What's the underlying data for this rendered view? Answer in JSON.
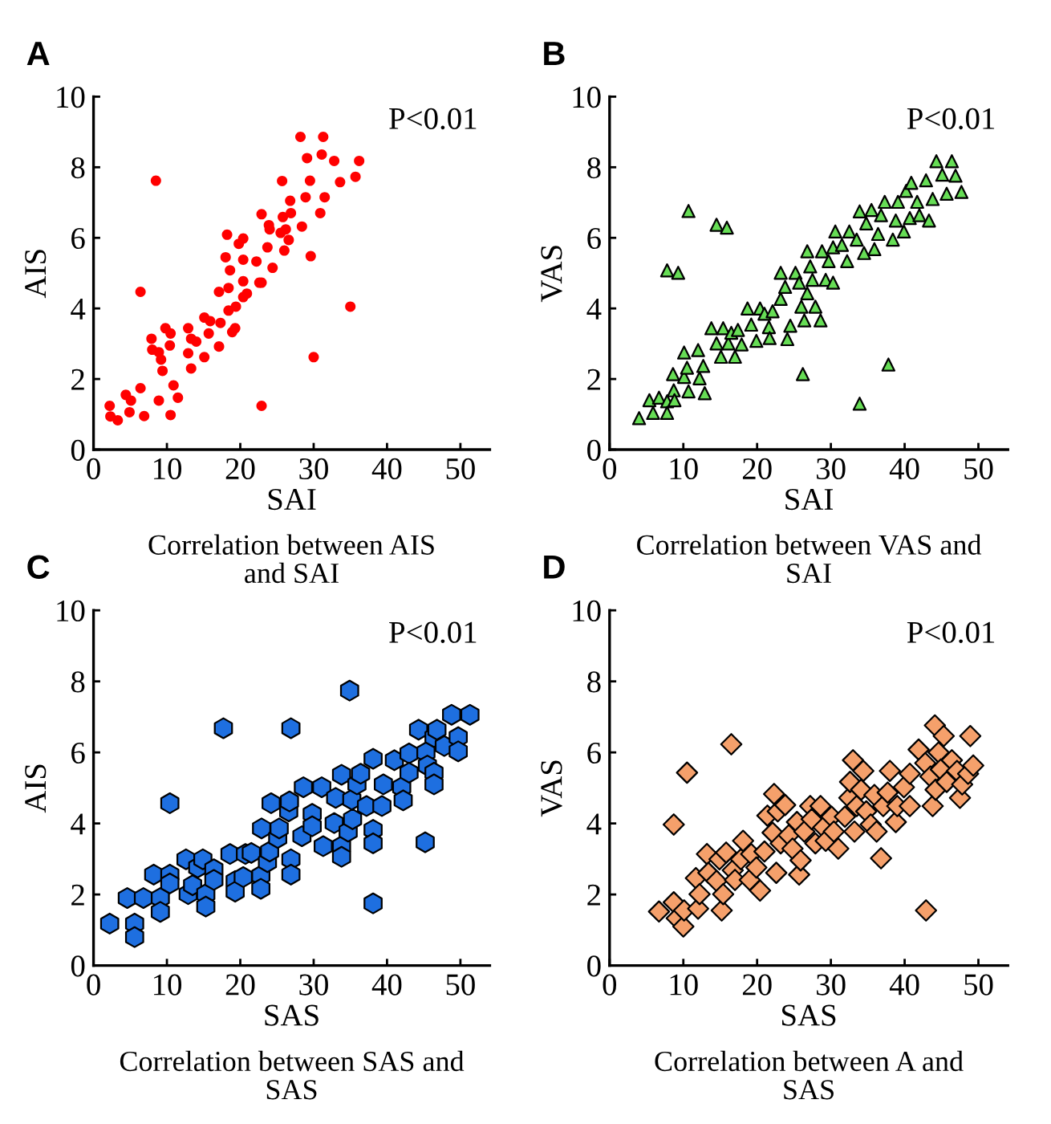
{
  "chart_data": [
    {
      "type": "scatter",
      "title": "A",
      "xlabel": "SAI",
      "ylabel": "AIS",
      "marker": "circle",
      "xlim": [
        0,
        54
      ],
      "xticks": [
        0,
        10,
        20,
        30,
        40,
        50
      ],
      "ylim": [
        0,
        10
      ],
      "yticks": [
        0,
        2,
        4,
        6,
        8,
        10
      ],
      "annotations": [
        "P<0.01",
        "Correlation between AIS\nand SAI"
      ],
      "series": [
        {
          "color": "#ff0000",
          "x": [
            2.2,
            2.3,
            3.3,
            4.4,
            4.9,
            5.1,
            6.4,
            6.4,
            6.9,
            8.5,
            7.9,
            8.0,
            8.9,
            8.9,
            9.2,
            9.4,
            9.8,
            10.4,
            10.5,
            10.5,
            10.9,
            11.5,
            12.9,
            12.9,
            13.3,
            13.3,
            14.0,
            15.1,
            15.1,
            15.7,
            15.9,
            17.1,
            17.3,
            17.1,
            18.0,
            18.2,
            18.4,
            18.6,
            18.4,
            18.9,
            19.3,
            19.4,
            19.8,
            20.4,
            20.4,
            20.4,
            20.4,
            20.9,
            22.2,
            22.6,
            22.9,
            22.9,
            22.9,
            23.7,
            23.9,
            24.0,
            24.4,
            25.5,
            25.7,
            25.8,
            26.0,
            26.2,
            26.6,
            26.8,
            26.9,
            28.2,
            28.4,
            28.9,
            29.1,
            29.5,
            29.6,
            30.0,
            31.3,
            31.1,
            30.9,
            31.5,
            32.8,
            33.6,
            35.0,
            35.7,
            36.2
          ],
          "values": [
            1.24,
            0.94,
            0.83,
            1.55,
            1.06,
            1.39,
            1.74,
            4.47,
            0.95,
            7.62,
            3.14,
            2.83,
            2.76,
            1.39,
            2.55,
            2.23,
            3.44,
            2.95,
            3.29,
            0.98,
            1.82,
            1.47,
            3.44,
            2.73,
            3.14,
            2.3,
            3.06,
            3.74,
            2.62,
            3.29,
            3.64,
            4.47,
            3.59,
            2.92,
            5.45,
            6.09,
            4.58,
            5.08,
            3.94,
            3.33,
            3.44,
            4.05,
            5.83,
            5.98,
            5.38,
            4.77,
            4.32,
            4.42,
            5.33,
            4.73,
            6.67,
            1.24,
            4.73,
            5.73,
            6.36,
            6.24,
            5.15,
            6.14,
            7.61,
            6.59,
            5.64,
            6.24,
            5.94,
            7.05,
            6.7,
            8.86,
            6.32,
            7.15,
            8.26,
            7.62,
            5.48,
            2.62,
            8.86,
            8.36,
            6.7,
            7.15,
            8.18,
            7.58,
            4.05,
            7.73,
            8.18
          ]
        }
      ]
    },
    {
      "type": "scatter",
      "title": "B",
      "xlabel": "SAI",
      "ylabel": "VAS",
      "marker": "triangle",
      "xlim": [
        0,
        54
      ],
      "xticks": [
        0,
        10,
        20,
        30,
        40,
        50
      ],
      "ylim": [
        0,
        10
      ],
      "yticks": [
        0,
        2,
        4,
        6,
        8,
        10
      ],
      "annotations": [
        "P<0.01",
        "Correlation between VAS and\nSAI"
      ],
      "series": [
        {
          "color": "#66dd55",
          "x": [
            4.0,
            5.4,
            5.9,
            6.7,
            7.8,
            7.8,
            7.8,
            8.6,
            8.7,
            8.8,
            9.3,
            10.1,
            10.1,
            10.5,
            10.7,
            10.7,
            12.0,
            12.2,
            12.7,
            12.9,
            13.8,
            14.5,
            14.5,
            15.1,
            15.4,
            15.9,
            16.1,
            16.5,
            17.0,
            17.4,
            17.9,
            18.7,
            19.2,
            19.9,
            20.4,
            21.0,
            21.6,
            21.7,
            22.1,
            23.2,
            23.2,
            23.8,
            24.1,
            24.5,
            25.2,
            25.7,
            26.0,
            26.2,
            26.4,
            26.8,
            26.8,
            27.2,
            27.5,
            27.9,
            28.6,
            28.8,
            29.3,
            29.7,
            30.3,
            30.3,
            30.6,
            31.5,
            32.2,
            32.5,
            33.5,
            33.9,
            33.9,
            34.5,
            34.8,
            35.5,
            35.9,
            36.4,
            36.8,
            37.3,
            37.8,
            38.4,
            38.8,
            39.1,
            39.9,
            40.2,
            40.7,
            40.9,
            41.7,
            42.0,
            42.9,
            43.3,
            43.8,
            44.3,
            45.1,
            45.7,
            46.4,
            46.9,
            47.7
          ],
          "values": [
            0.89,
            1.4,
            1.04,
            1.47,
            1.37,
            1.04,
            5.08,
            2.14,
            1.68,
            1.4,
            5.01,
            2.75,
            2.06,
            2.32,
            6.76,
            1.65,
            2.82,
            2.02,
            2.37,
            1.6,
            3.44,
            3.01,
            6.37,
            2.63,
            3.44,
            6.29,
            3.01,
            3.31,
            2.63,
            3.39,
            2.98,
            4.0,
            3.54,
            3.08,
            4.0,
            3.85,
            3.47,
            3.16,
            3.92,
            5.01,
            4.27,
            4.61,
            3.13,
            3.51,
            5.01,
            4.73,
            4.05,
            2.14,
            3.66,
            5.62,
            4.43,
            5.19,
            4.81,
            4.05,
            3.66,
            5.62,
            4.81,
            5.34,
            5.73,
            4.73,
            6.18,
            5.8,
            5.34,
            6.18,
            5.95,
            6.75,
            1.3,
            5.57,
            6.41,
            6.79,
            5.68,
            6.11,
            6.64,
            7.02,
            2.41,
            5.95,
            6.49,
            7.02,
            6.18,
            7.33,
            6.56,
            7.56,
            7.02,
            6.64,
            7.63,
            6.49,
            7.1,
            8.17,
            7.79,
            7.25,
            8.17,
            7.76,
            7.3
          ]
        }
      ]
    },
    {
      "type": "scatter",
      "title": "C",
      "xlabel": "SAS",
      "ylabel": "AIS",
      "xlim": [
        0,
        54
      ],
      "xticks": [
        0,
        10,
        20,
        30,
        40,
        50
      ],
      "ylim": [
        0,
        10
      ],
      "yticks": [
        0,
        2,
        4,
        6,
        8,
        10
      ],
      "annotations": [
        "P<0.01",
        "Correlation between SAS and\nSAS"
      ],
      "series": [
        {
          "color": "#1e6fe0",
          "x": [
            2.2,
            4.6,
            5.6,
            5.6,
            6.8,
            8.2,
            9.1,
            9.1,
            10.4,
            10.4,
            10.4,
            12.6,
            12.9,
            13.5,
            14.2,
            14.9,
            15.3,
            15.3,
            16.4,
            16.4,
            17.7,
            18.6,
            19.3,
            19.3,
            20.4,
            20.7,
            21.5,
            22.8,
            22.8,
            22.9,
            23.7,
            24.0,
            24.2,
            25.1,
            25.3,
            26.6,
            26.7,
            26.9,
            26.9,
            26.9,
            28.4,
            28.6,
            29.8,
            29.8,
            31.1,
            31.3,
            32.8,
            33.0,
            33.8,
            33.8,
            33.8,
            34.7,
            34.9,
            35.2,
            35.3,
            35.9,
            36.4,
            37.2,
            38.1,
            38.1,
            38.1,
            38.1,
            39.3,
            39.5,
            41.0,
            42.0,
            42.2,
            43.0,
            43.0,
            44.3,
            45.2,
            45.3,
            45.5,
            46.4,
            46.4,
            46.4,
            46.8,
            47.8,
            48.8,
            49.7,
            49.7,
            51.3
          ],
          "values": [
            1.18,
            1.9,
            1.18,
            0.8,
            1.9,
            2.56,
            1.9,
            1.51,
            4.57,
            2.56,
            2.31,
            2.99,
            2.01,
            2.26,
            2.76,
            2.99,
            2.01,
            1.66,
            2.71,
            2.41,
            6.68,
            3.14,
            2.38,
            2.08,
            2.49,
            3.14,
            3.17,
            2.53,
            2.16,
            3.86,
            2.91,
            3.21,
            4.57,
            3.59,
            3.86,
            4.34,
            4.62,
            2.99,
            2.56,
            6.68,
            3.64,
            5.02,
            4.27,
            3.92,
            5.02,
            3.36,
            4.01,
            4.72,
            5.37,
            3.36,
            3.06,
            3.77,
            7.74,
            4.67,
            4.12,
            5.1,
            5.4,
            4.49,
            5.82,
            3.82,
            3.44,
            1.75,
            4.49,
            5.1,
            5.78,
            5.02,
            4.65,
            5.97,
            5.43,
            6.64,
            3.47,
            6.0,
            5.63,
            6.43,
            5.43,
            5.1,
            6.64,
            6.18,
            7.06,
            6.43,
            6.03,
            7.06
          ]
        }
      ]
    },
    {
      "type": "scatter",
      "title": "D",
      "xlabel": "SAS",
      "ylabel": "VAS",
      "marker": "diamond",
      "xlim": [
        0,
        54
      ],
      "xticks": [
        0,
        10,
        20,
        30,
        40,
        50
      ],
      "ylim": [
        0,
        10
      ],
      "yticks": [
        0,
        2,
        4,
        6,
        8,
        10
      ],
      "annotations": [
        "P<0.01",
        "Correlation between A and\nSAS"
      ],
      "series": [
        {
          "color": "#f5a06b",
          "x": [
            6.7,
            8.7,
            8.7,
            9.1,
            10.0,
            10.1,
            10.5,
            11.7,
            12.0,
            12.2,
            13.2,
            13.4,
            14.5,
            14.9,
            15.2,
            15.4,
            15.8,
            16.5,
            16.7,
            17.0,
            17.8,
            18.1,
            19.0,
            19.2,
            19.9,
            20.4,
            21.0,
            21.4,
            22.1,
            22.3,
            22.6,
            22.8,
            23.2,
            23.8,
            24.3,
            24.8,
            25.4,
            25.7,
            25.9,
            26.4,
            27.2,
            27.4,
            27.9,
            28.6,
            29.0,
            29.3,
            30.1,
            30.4,
            31.0,
            31.9,
            32.5,
            32.6,
            33.0,
            33.2,
            33.5,
            34.1,
            34.4,
            34.8,
            35.4,
            35.9,
            36.2,
            36.8,
            37.1,
            37.7,
            38.0,
            38.8,
            39.0,
            39.9,
            40.7,
            40.7,
            41.9,
            42.9,
            42.8,
            43.5,
            43.8,
            44.1,
            44.2,
            44.6,
            44.9,
            45.3,
            45.7,
            46.4,
            47.1,
            47.5,
            47.8,
            48.6,
            48.9,
            49.3
          ],
          "values": [
            1.52,
            1.78,
            3.97,
            1.33,
            1.1,
            1.55,
            5.43,
            2.46,
            1.6,
            2.01,
            3.14,
            2.61,
            2.38,
            2.99,
            1.55,
            2.01,
            3.18,
            6.23,
            2.68,
            2.41,
            2.99,
            3.51,
            2.41,
            3.14,
            2.76,
            2.11,
            3.21,
            4.22,
            3.74,
            4.83,
            2.61,
            4.34,
            3.44,
            4.52,
            3.67,
            3.29,
            4.04,
            2.56,
            2.96,
            3.77,
            4.49,
            4.12,
            3.44,
            4.49,
            3.89,
            3.51,
            4.19,
            3.77,
            3.29,
            4.19,
            4.72,
            5.17,
            5.78,
            3.77,
            4.49,
            4.95,
            5.48,
            4.34,
            3.97,
            4.8,
            3.77,
            3.02,
            4.49,
            4.87,
            5.48,
            4.04,
            4.49,
            5.02,
            4.49,
            5.4,
            6.08,
            1.55,
            5.7,
            5.32,
            4.49,
            6.76,
            4.95,
            6.0,
            5.52,
            6.46,
            5.17,
            5.78,
            5.48,
            4.72,
            5.1,
            5.4,
            6.46,
            5.63
          ]
        }
      ]
    }
  ]
}
